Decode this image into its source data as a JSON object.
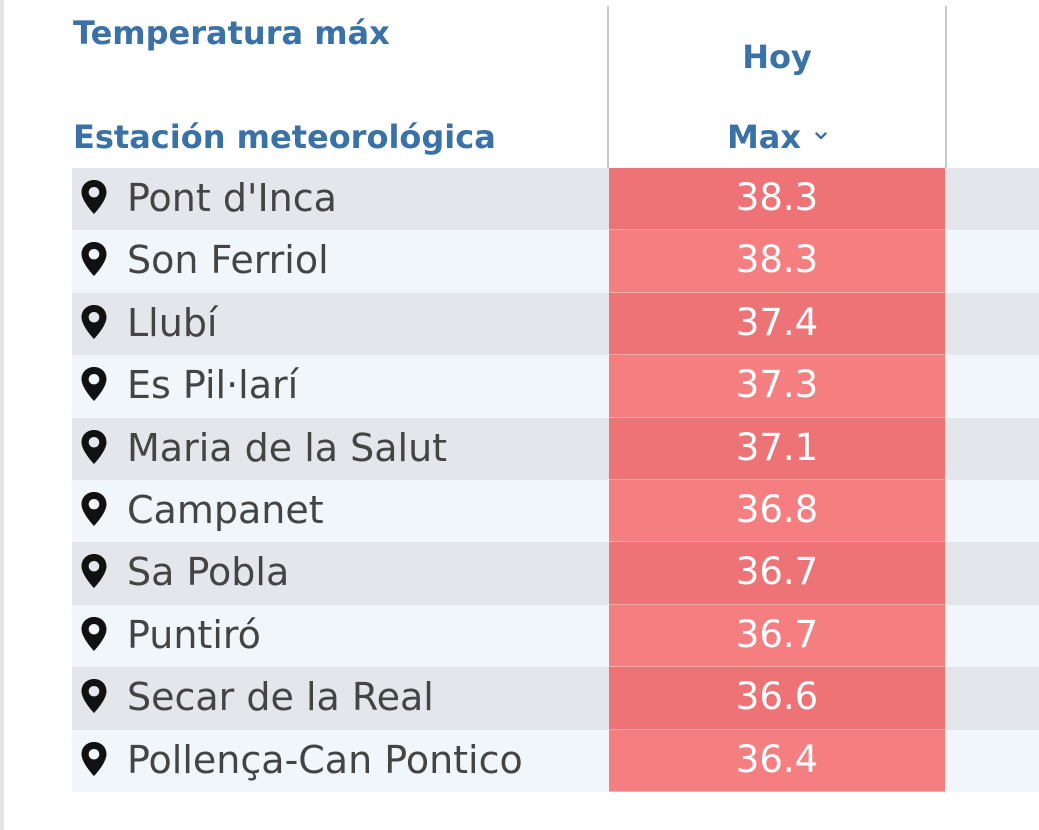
{
  "header": {
    "title": "Temperatura máx",
    "station_label": "Estación meteorológica",
    "today_label": "Hoy",
    "max_label": "Max"
  },
  "icons": {
    "row_icon": "location-pin-icon",
    "sort_icon": "chevron-down-icon"
  },
  "colors": {
    "header_text": "#3a72a8",
    "hot_strong": "#ee7377",
    "hot_light": "#f57e80"
  },
  "rows": [
    {
      "station": "Pont d'Inca",
      "max": "38.3"
    },
    {
      "station": "Son Ferriol",
      "max": "38.3"
    },
    {
      "station": "Llubí",
      "max": "37.4"
    },
    {
      "station": "Es Pil·larí",
      "max": "37.3"
    },
    {
      "station": "Maria de la Salut",
      "max": "37.1"
    },
    {
      "station": "Campanet",
      "max": "36.8"
    },
    {
      "station": "Sa Pobla",
      "max": "36.7"
    },
    {
      "station": "Puntiró",
      "max": "36.7"
    },
    {
      "station": "Secar de la Real",
      "max": "36.6"
    },
    {
      "station": "Pollença-Can Pontico",
      "max": "36.4"
    }
  ]
}
